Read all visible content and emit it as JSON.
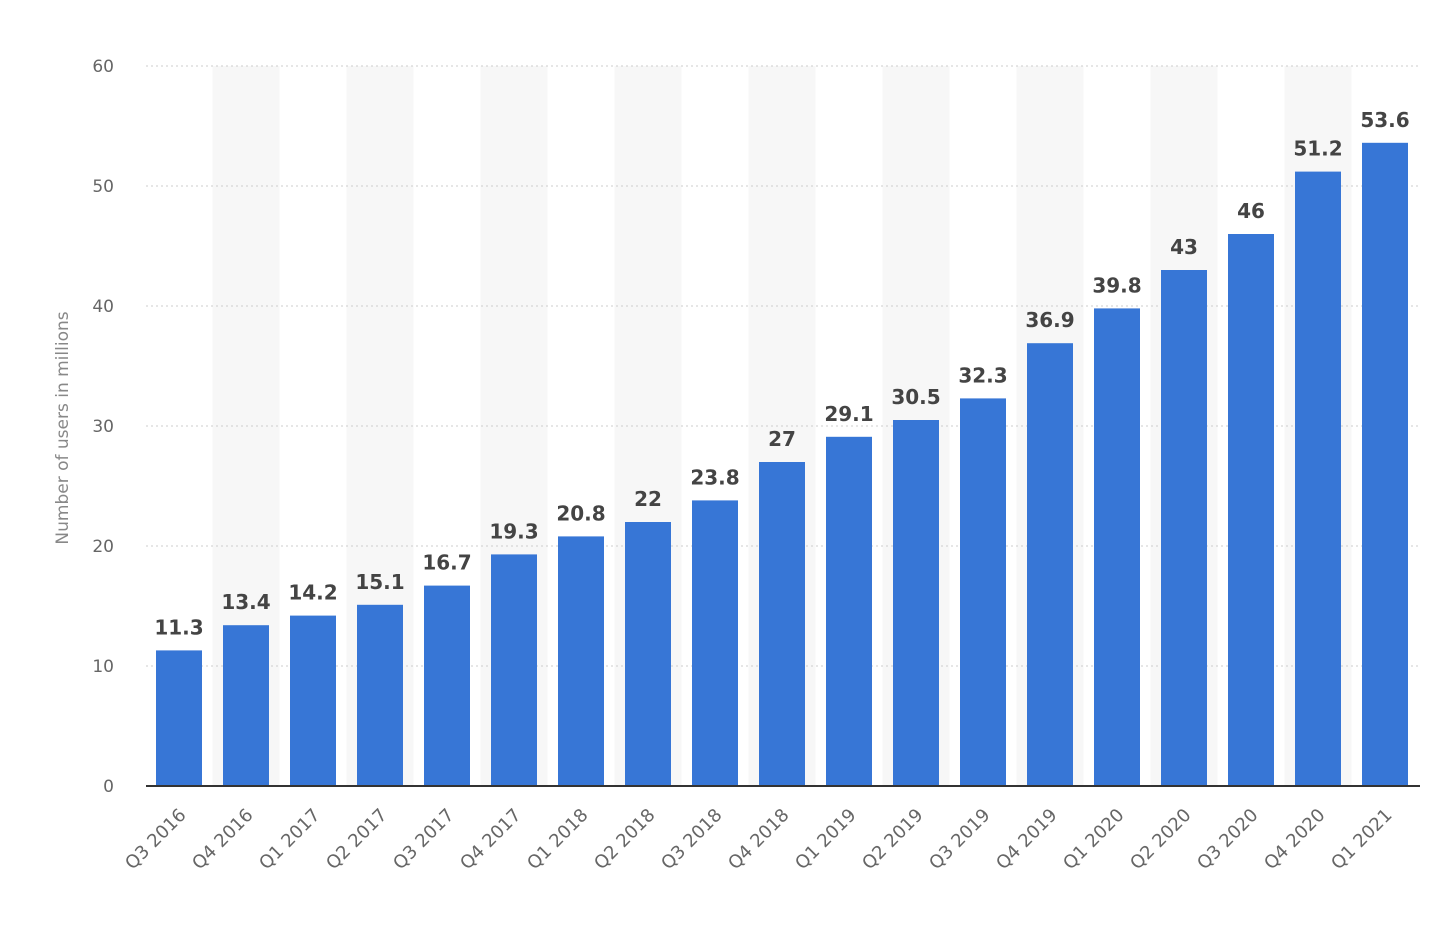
{
  "chart_data": {
    "type": "bar",
    "categories": [
      "Q3 2016",
      "Q4 2016",
      "Q1 2017",
      "Q2 2017",
      "Q3 2017",
      "Q4 2017",
      "Q1 2018",
      "Q2 2018",
      "Q3 2018",
      "Q4 2018",
      "Q1 2019",
      "Q2 2019",
      "Q3 2019",
      "Q4 2019",
      "Q1 2020",
      "Q2 2020",
      "Q3 2020",
      "Q4 2020",
      "Q1 2021"
    ],
    "values": [
      11.3,
      13.4,
      14.2,
      15.1,
      16.7,
      19.3,
      20.8,
      22,
      23.8,
      27,
      29.1,
      30.5,
      32.3,
      36.9,
      39.8,
      43,
      46,
      51.2,
      53.6
    ],
    "data_labels": [
      "11.3",
      "13.4",
      "14.2",
      "15.1",
      "16.7",
      "19.3",
      "20.8",
      "22",
      "23.8",
      "27",
      "29.1",
      "30.5",
      "32.3",
      "36.9",
      "39.8",
      "43",
      "46",
      "51.2",
      "53.6"
    ],
    "title": "",
    "xlabel": "",
    "ylabel": "Number of users in millions",
    "ylim": [
      0,
      60
    ],
    "yticks": [
      "0",
      "10",
      "20",
      "30",
      "40",
      "50",
      "60"
    ],
    "grid": true,
    "legend": "none",
    "colors": {
      "bar": "#3776d6",
      "band": "#f7f7f7",
      "grid": "#cccccc",
      "axis": "#333333"
    }
  }
}
